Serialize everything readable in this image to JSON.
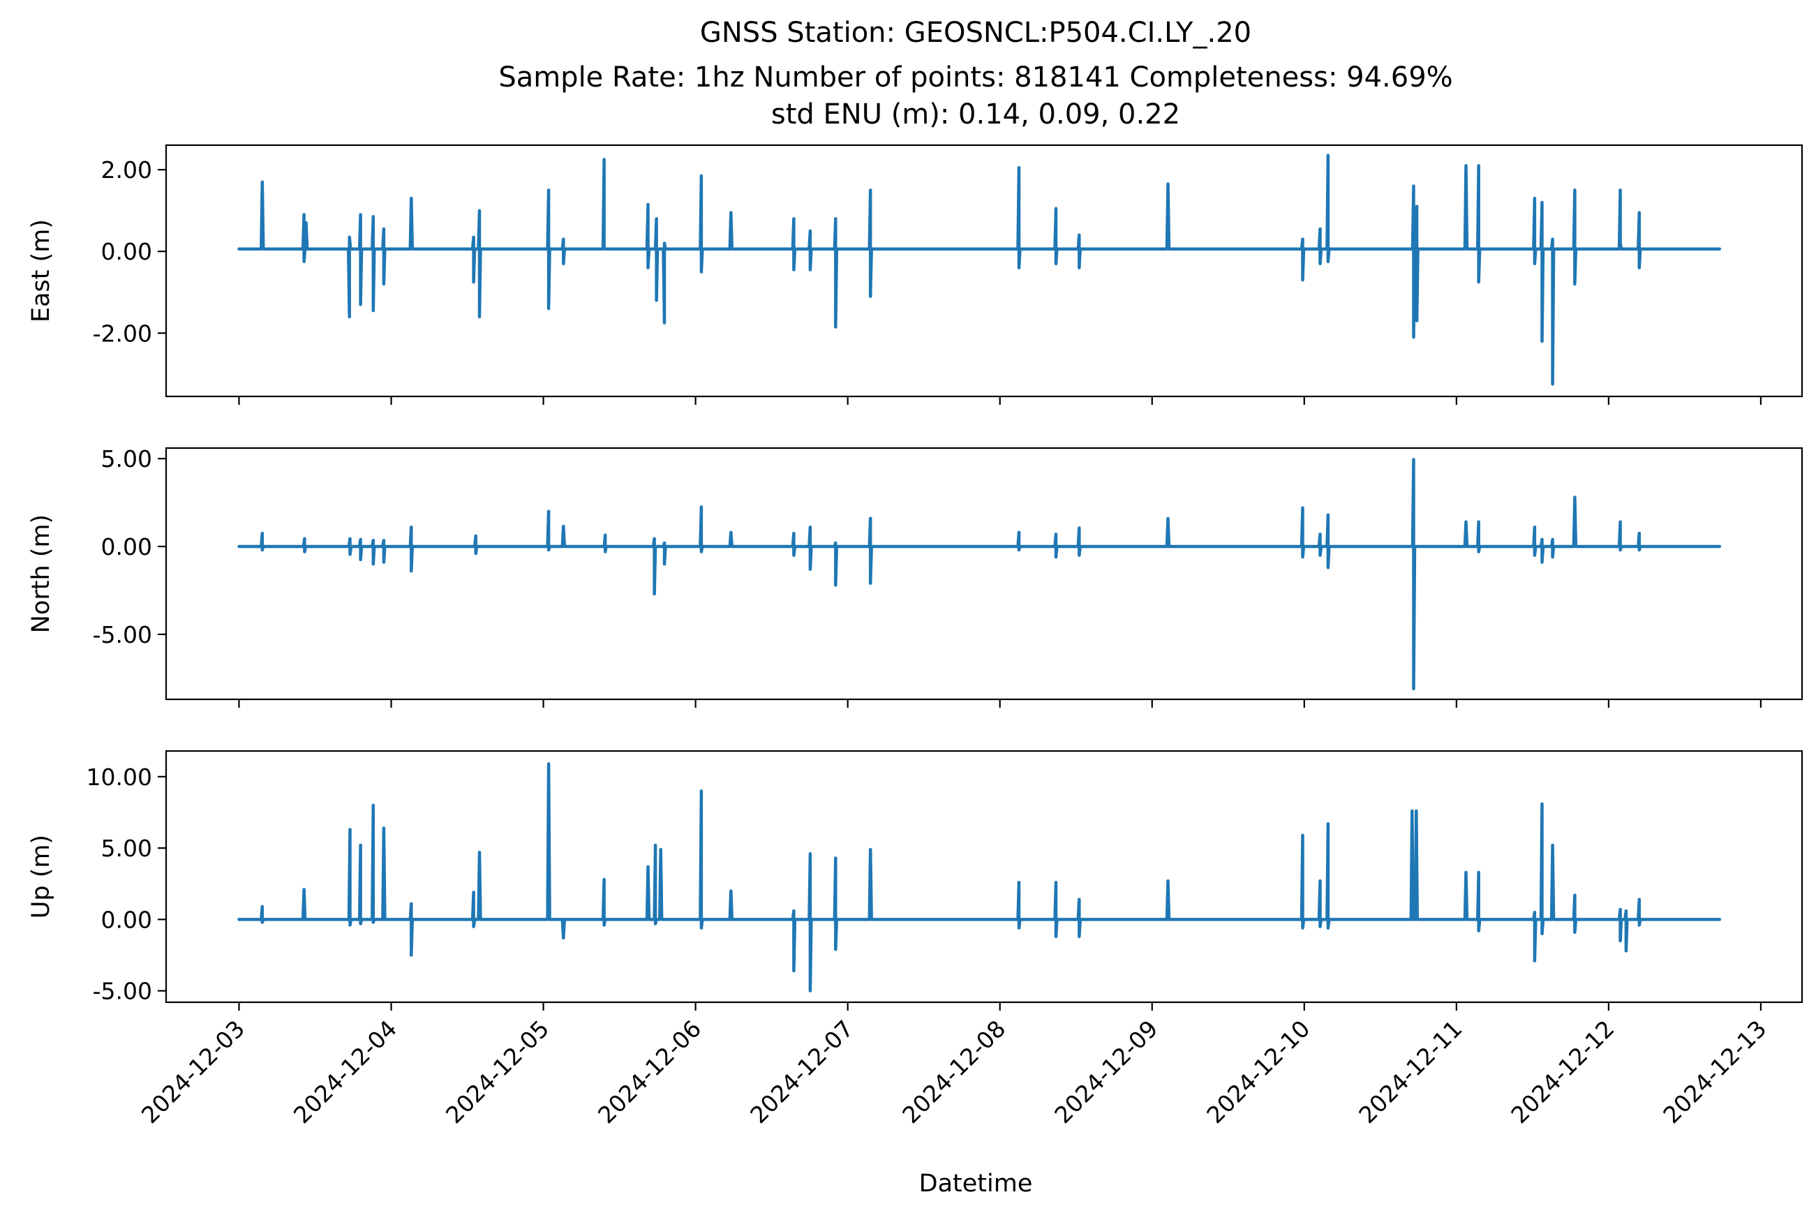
{
  "title_lines": [
    "GNSS Station: GEOSNCL:P504.CI.LY_.20",
    "Sample Rate: 1hz   Number of points: 818141    Completeness:  94.69%",
    "std ENU (m):  0.14, 0.09, 0.22"
  ],
  "colors": {
    "series": "#1f77b4",
    "axes": "#000000",
    "background": "#ffffff"
  },
  "chart_data": [
    {
      "type": "line",
      "panel": "east",
      "ylabel": "East (m)",
      "ylim": [
        -3.55,
        2.6
      ],
      "yticks": [
        -2.0,
        0.0,
        2.0
      ],
      "ytick_labels": [
        "-2.00",
        "0.00",
        "2.00"
      ],
      "grid": false,
      "series": [
        {
          "baseline": 0.06,
          "spikes": [
            {
              "x": "2024-12-03 03:40",
              "v": [
                1.7
              ]
            },
            {
              "x": "2024-12-03 10:15",
              "v": [
                0.9,
                -0.25
              ]
            },
            {
              "x": "2024-12-03 10:35",
              "v": [
                0.7
              ]
            },
            {
              "x": "2024-12-03 17:25",
              "v": [
                -1.6,
                0.35
              ]
            },
            {
              "x": "2024-12-03 19:10",
              "v": [
                0.9,
                -1.3
              ]
            },
            {
              "x": "2024-12-03 21:10",
              "v": [
                0.85,
                -1.45
              ]
            },
            {
              "x": "2024-12-03 22:50",
              "v": [
                0.55,
                -0.8
              ]
            },
            {
              "x": "2024-12-04 03:10",
              "v": [
                1.3
              ]
            },
            {
              "x": "2024-12-04 13:00",
              "v": [
                0.35,
                -0.75
              ]
            },
            {
              "x": "2024-12-04 13:55",
              "v": [
                1.0,
                -1.6
              ]
            },
            {
              "x": "2024-12-05 00:50",
              "v": [
                1.5,
                -1.4
              ]
            },
            {
              "x": "2024-12-05 03:10",
              "v": [
                0.3,
                -0.3
              ]
            },
            {
              "x": "2024-12-05 09:35",
              "v": [
                2.25,
                0.1
              ]
            },
            {
              "x": "2024-12-05 16:30",
              "v": [
                1.15,
                -0.4
              ]
            },
            {
              "x": "2024-12-05 17:50",
              "v": [
                0.8,
                -1.2
              ]
            },
            {
              "x": "2024-12-05 19:05",
              "v": [
                -1.75,
                0.2
              ]
            },
            {
              "x": "2024-12-06 00:55",
              "v": [
                1.85,
                -0.5
              ]
            },
            {
              "x": "2024-12-06 05:35",
              "v": [
                0.95
              ]
            },
            {
              "x": "2024-12-06 15:30",
              "v": [
                0.8,
                -0.45
              ]
            },
            {
              "x": "2024-12-06 18:05",
              "v": [
                0.5,
                -0.45
              ]
            },
            {
              "x": "2024-12-06 22:05",
              "v": [
                0.8,
                -1.85
              ]
            },
            {
              "x": "2024-12-07 03:35",
              "v": [
                1.5,
                -1.1
              ]
            },
            {
              "x": "2024-12-08 03:00",
              "v": [
                2.05,
                -0.4
              ]
            },
            {
              "x": "2024-12-08 08:50",
              "v": [
                1.05,
                -0.3
              ]
            },
            {
              "x": "2024-12-08 12:30",
              "v": [
                0.4,
                -0.4
              ]
            },
            {
              "x": "2024-12-09 02:30",
              "v": [
                1.65
              ]
            },
            {
              "x": "2024-12-09 23:45",
              "v": [
                0.3,
                -0.7
              ]
            },
            {
              "x": "2024-12-10 02:30",
              "v": [
                0.55,
                -0.3
              ]
            },
            {
              "x": "2024-12-10 03:45",
              "v": [
                2.35,
                -0.25
              ]
            },
            {
              "x": "2024-12-10 17:15",
              "v": [
                1.6,
                -2.1
              ]
            },
            {
              "x": "2024-12-10 17:45",
              "v": [
                1.1,
                -1.7
              ]
            },
            {
              "x": "2024-12-11 01:30",
              "v": [
                2.1
              ]
            },
            {
              "x": "2024-12-11 03:30",
              "v": [
                2.1,
                -0.75
              ]
            },
            {
              "x": "2024-12-11 12:20",
              "v": [
                1.3,
                -0.3
              ]
            },
            {
              "x": "2024-12-11 13:30",
              "v": [
                1.2,
                -2.2
              ]
            },
            {
              "x": "2024-12-11 15:10",
              "v": [
                0.3,
                -3.25
              ]
            },
            {
              "x": "2024-12-11 18:40",
              "v": [
                1.5,
                -0.8
              ]
            },
            {
              "x": "2024-12-12 01:50",
              "v": [
                1.5,
                0.2
              ]
            },
            {
              "x": "2024-12-12 04:50",
              "v": [
                0.95,
                -0.4
              ]
            }
          ]
        }
      ]
    },
    {
      "type": "line",
      "panel": "north",
      "ylabel": "North (m)",
      "ylim": [
        -8.7,
        5.6
      ],
      "yticks": [
        -5.0,
        0.0,
        5.0
      ],
      "ytick_labels": [
        "-5.00",
        "0.00",
        "5.00"
      ],
      "grid": false,
      "series": [
        {
          "baseline": 0.0,
          "spikes": [
            {
              "x": "2024-12-03 03:40",
              "v": [
                0.75,
                -0.2
              ]
            },
            {
              "x": "2024-12-03 10:20",
              "v": [
                0.45,
                -0.3
              ]
            },
            {
              "x": "2024-12-03 17:30",
              "v": [
                0.45,
                -0.45
              ]
            },
            {
              "x": "2024-12-03 19:10",
              "v": [
                0.4,
                -0.75
              ]
            },
            {
              "x": "2024-12-03 21:10",
              "v": [
                0.35,
                -1.0
              ]
            },
            {
              "x": "2024-12-03 22:50",
              "v": [
                0.35,
                -0.9
              ]
            },
            {
              "x": "2024-12-04 03:10",
              "v": [
                1.1,
                -1.4
              ]
            },
            {
              "x": "2024-12-04 13:20",
              "v": [
                0.6,
                -0.4
              ]
            },
            {
              "x": "2024-12-05 00:50",
              "v": [
                2.0,
                -0.2
              ]
            },
            {
              "x": "2024-12-05 03:10",
              "v": [
                1.15
              ]
            },
            {
              "x": "2024-12-05 09:45",
              "v": [
                0.65,
                -0.3
              ]
            },
            {
              "x": "2024-12-05 17:30",
              "v": [
                0.45,
                -2.7
              ]
            },
            {
              "x": "2024-12-05 19:05",
              "v": [
                0.2,
                -1.0
              ]
            },
            {
              "x": "2024-12-06 00:55",
              "v": [
                2.25,
                -0.3
              ]
            },
            {
              "x": "2024-12-06 05:35",
              "v": [
                0.8
              ]
            },
            {
              "x": "2024-12-06 15:30",
              "v": [
                0.75,
                -0.5
              ]
            },
            {
              "x": "2024-12-06 18:05",
              "v": [
                1.1,
                -1.3
              ]
            },
            {
              "x": "2024-12-06 22:05",
              "v": [
                0.2,
                -2.2
              ]
            },
            {
              "x": "2024-12-07 03:35",
              "v": [
                1.6,
                -2.1
              ]
            },
            {
              "x": "2024-12-08 03:00",
              "v": [
                0.8,
                -0.2
              ]
            },
            {
              "x": "2024-12-08 08:50",
              "v": [
                0.7,
                -0.6
              ]
            },
            {
              "x": "2024-12-08 12:30",
              "v": [
                1.05,
                -0.5
              ]
            },
            {
              "x": "2024-12-09 02:30",
              "v": [
                1.6
              ]
            },
            {
              "x": "2024-12-09 23:45",
              "v": [
                2.2,
                -0.6
              ]
            },
            {
              "x": "2024-12-10 02:30",
              "v": [
                0.7,
                -0.5
              ]
            },
            {
              "x": "2024-12-10 03:45",
              "v": [
                1.8,
                -1.2
              ]
            },
            {
              "x": "2024-12-10 17:15",
              "v": [
                4.95,
                -8.1
              ]
            },
            {
              "x": "2024-12-11 01:30",
              "v": [
                1.4
              ]
            },
            {
              "x": "2024-12-11 03:30",
              "v": [
                1.4,
                -0.3
              ]
            },
            {
              "x": "2024-12-11 12:20",
              "v": [
                1.1,
                -0.5
              ]
            },
            {
              "x": "2024-12-11 13:30",
              "v": [
                0.4,
                -0.9
              ]
            },
            {
              "x": "2024-12-11 15:10",
              "v": [
                0.4,
                -0.6
              ]
            },
            {
              "x": "2024-12-11 18:40",
              "v": [
                2.8
              ]
            },
            {
              "x": "2024-12-12 01:50",
              "v": [
                1.4,
                -0.2
              ]
            },
            {
              "x": "2024-12-12 04:50",
              "v": [
                0.75,
                -0.2
              ]
            }
          ]
        }
      ]
    },
    {
      "type": "line",
      "panel": "up",
      "ylabel": "Up (m)",
      "ylim": [
        -5.8,
        11.8
      ],
      "yticks": [
        -5.0,
        0.0,
        5.0,
        10.0
      ],
      "ytick_labels": [
        "-5.00",
        "0.00",
        "5.00",
        "10.00"
      ],
      "xlabel": "Datetime",
      "x_ticks": [
        "2024-12-03",
        "2024-12-04",
        "2024-12-05",
        "2024-12-06",
        "2024-12-07",
        "2024-12-08",
        "2024-12-09",
        "2024-12-10",
        "2024-12-11",
        "2024-12-12",
        "2024-12-13"
      ],
      "x_range": [
        "2024-12-02 12:30",
        "2024-12-13 06:30"
      ],
      "data_range": [
        "2024-12-03 00:00",
        "2024-12-12 17:30"
      ],
      "grid": false,
      "series": [
        {
          "baseline": 0.0,
          "spikes": [
            {
              "x": "2024-12-03 03:40",
              "v": [
                0.9,
                -0.2
              ]
            },
            {
              "x": "2024-12-03 10:15",
              "v": [
                2.1
              ]
            },
            {
              "x": "2024-12-03 17:30",
              "v": [
                6.3,
                -0.4
              ]
            },
            {
              "x": "2024-12-03 19:10",
              "v": [
                5.2,
                -0.3
              ]
            },
            {
              "x": "2024-12-03 21:10",
              "v": [
                8.0,
                -0.2
              ]
            },
            {
              "x": "2024-12-03 22:50",
              "v": [
                6.4
              ]
            },
            {
              "x": "2024-12-04 03:10",
              "v": [
                1.1,
                -2.5
              ]
            },
            {
              "x": "2024-12-04 13:00",
              "v": [
                1.9,
                -0.5
              ]
            },
            {
              "x": "2024-12-04 13:55",
              "v": [
                4.7
              ]
            },
            {
              "x": "2024-12-05 00:50",
              "v": [
                10.9
              ]
            },
            {
              "x": "2024-12-05 03:10",
              "v": [
                -1.3
              ]
            },
            {
              "x": "2024-12-05 09:35",
              "v": [
                2.8,
                -0.4
              ]
            },
            {
              "x": "2024-12-05 16:30",
              "v": [
                3.7
              ]
            },
            {
              "x": "2024-12-05 17:40",
              "v": [
                5.2,
                -0.3
              ]
            },
            {
              "x": "2024-12-05 18:30",
              "v": [
                4.9
              ]
            },
            {
              "x": "2024-12-06 00:55",
              "v": [
                9.0,
                -0.6
              ]
            },
            {
              "x": "2024-12-06 05:35",
              "v": [
                2.0
              ]
            },
            {
              "x": "2024-12-06 15:30",
              "v": [
                0.6,
                -3.6
              ]
            },
            {
              "x": "2024-12-06 18:05",
              "v": [
                4.6,
                -5.0
              ]
            },
            {
              "x": "2024-12-06 22:05",
              "v": [
                4.3,
                -2.1
              ]
            },
            {
              "x": "2024-12-07 03:35",
              "v": [
                4.9
              ]
            },
            {
              "x": "2024-12-08 03:00",
              "v": [
                2.6,
                -0.6
              ]
            },
            {
              "x": "2024-12-08 08:50",
              "v": [
                2.6,
                -1.2
              ]
            },
            {
              "x": "2024-12-08 12:30",
              "v": [
                1.4,
                -1.2
              ]
            },
            {
              "x": "2024-12-09 02:30",
              "v": [
                2.7
              ]
            },
            {
              "x": "2024-12-09 23:45",
              "v": [
                5.9,
                -0.6
              ]
            },
            {
              "x": "2024-12-10 02:30",
              "v": [
                2.7,
                -0.5
              ]
            },
            {
              "x": "2024-12-10 03:45",
              "v": [
                6.7,
                -0.6
              ]
            },
            {
              "x": "2024-12-10 17:00",
              "v": [
                7.6
              ]
            },
            {
              "x": "2024-12-10 17:40",
              "v": [
                7.6
              ]
            },
            {
              "x": "2024-12-11 01:30",
              "v": [
                3.3
              ]
            },
            {
              "x": "2024-12-11 03:30",
              "v": [
                3.3,
                -0.8
              ]
            },
            {
              "x": "2024-12-11 12:20",
              "v": [
                0.5,
                -2.9
              ]
            },
            {
              "x": "2024-12-11 13:30",
              "v": [
                8.1,
                -1.0
              ]
            },
            {
              "x": "2024-12-11 15:10",
              "v": [
                5.2
              ]
            },
            {
              "x": "2024-12-11 18:40",
              "v": [
                1.7,
                -0.9
              ]
            },
            {
              "x": "2024-12-12 01:50",
              "v": [
                0.7,
                -1.5
              ]
            },
            {
              "x": "2024-12-12 02:45",
              "v": [
                0.6,
                -2.2
              ]
            },
            {
              "x": "2024-12-12 04:50",
              "v": [
                1.4,
                -0.4
              ]
            }
          ]
        }
      ]
    }
  ]
}
